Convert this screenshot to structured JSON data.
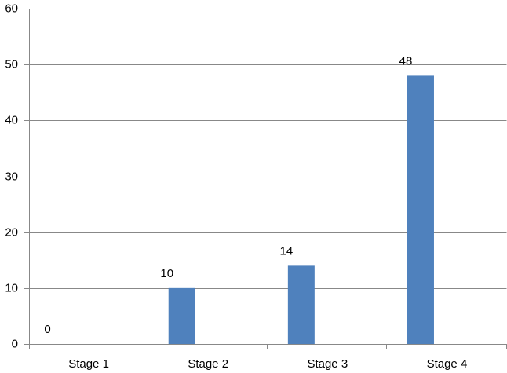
{
  "chart_data": {
    "type": "bar",
    "categories": [
      "Stage 1",
      "Stage 2",
      "Stage 3",
      "Stage 4"
    ],
    "values": [
      0,
      10,
      14,
      48
    ],
    "color": "#4f81bd",
    "ylim": [
      0,
      60
    ],
    "yticks": [
      0,
      10,
      20,
      30,
      40,
      50,
      60
    ],
    "grid": true,
    "data_labels": true
  }
}
